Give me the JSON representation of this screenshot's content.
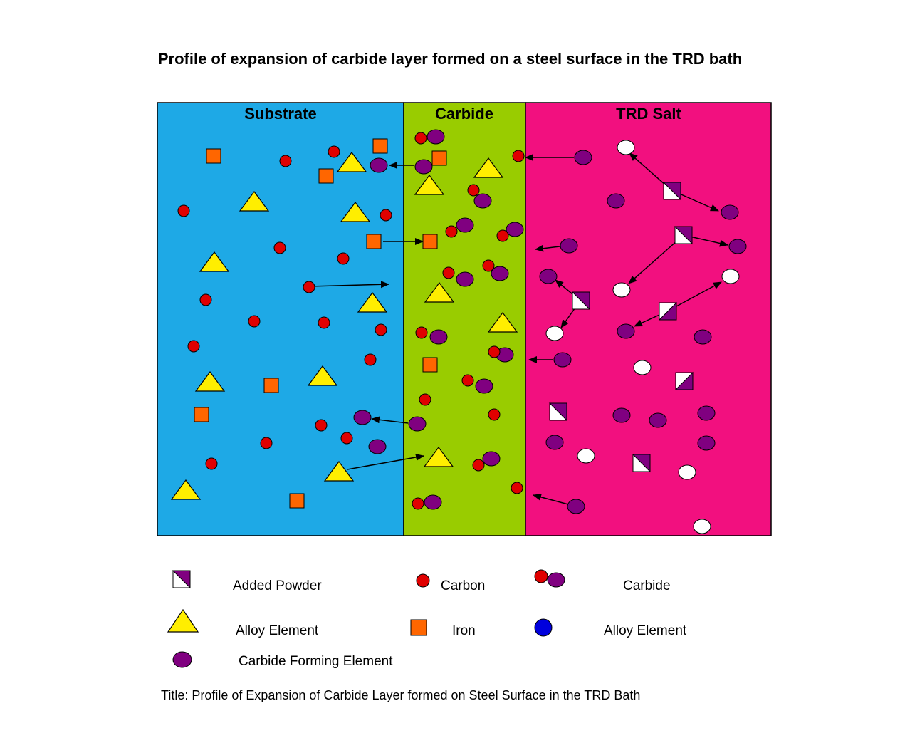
{
  "title": "Profile of expansion of carbide layer formed on a steel surface in the TRD bath",
  "caption": "Title: Profile of Expansion of Carbide Layer formed on Steel Surface in the TRD Bath",
  "zones": [
    {
      "label": "Substrate",
      "color": "#1EA9E6"
    },
    {
      "label": "Carbide",
      "color": "#99CC00"
    },
    {
      "label": "TRD Salt",
      "color": "#F2107F"
    }
  ],
  "colors": {
    "carbon": "#E00000",
    "iron": "#FF6600",
    "alloy_element": "#FFEE00",
    "carbide_forming": "#800080",
    "alloy_element_blue": "#0000DD",
    "white_particle": "#FFFFFF"
  },
  "legend": {
    "added_powder": "Added Powder",
    "carbon": "Carbon",
    "carbide": "Carbide",
    "alloy_element": "Alloy Element",
    "iron": "Iron",
    "alloy_element_blue": "Alloy Element",
    "carbide_forming": "Carbide Forming Element"
  }
}
